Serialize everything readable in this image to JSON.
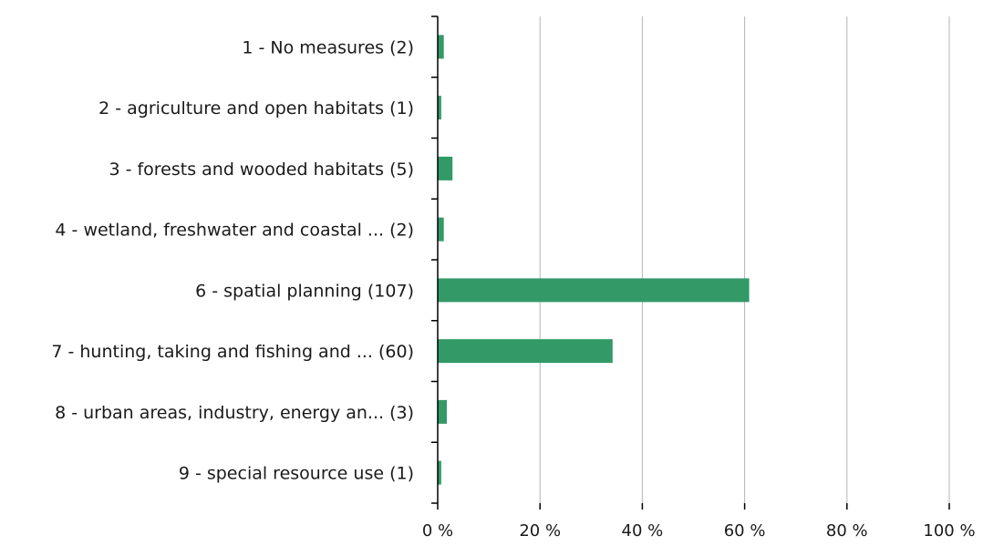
{
  "chart_data": {
    "type": "bar",
    "orientation": "horizontal",
    "categories": [
      "1 - No measures (2)",
      "2 - agriculture and open habitats (1)",
      "3 - forests and wooded habitats (5)",
      "4 - wetland, freshwater and coastal ... (2)",
      "6 - spatial planning (107)",
      "7 - hunting, taking and fishing and ... (60)",
      "8 - urban areas, industry, energy an... (3)",
      "9 - special resource use (1)"
    ],
    "values": [
      1.1,
      0.6,
      2.8,
      1.1,
      60.8,
      34.1,
      1.7,
      0.6
    ],
    "xlim": [
      0,
      100
    ],
    "xticks": [
      0,
      20,
      40,
      60,
      80,
      100
    ],
    "xtick_labels": [
      "0 %",
      "20 %",
      "40 %",
      "60 %",
      "80 %",
      "100 %"
    ],
    "title": "",
    "xlabel": "",
    "ylabel": "",
    "grid": "vertical",
    "bar_color": "#339966"
  }
}
